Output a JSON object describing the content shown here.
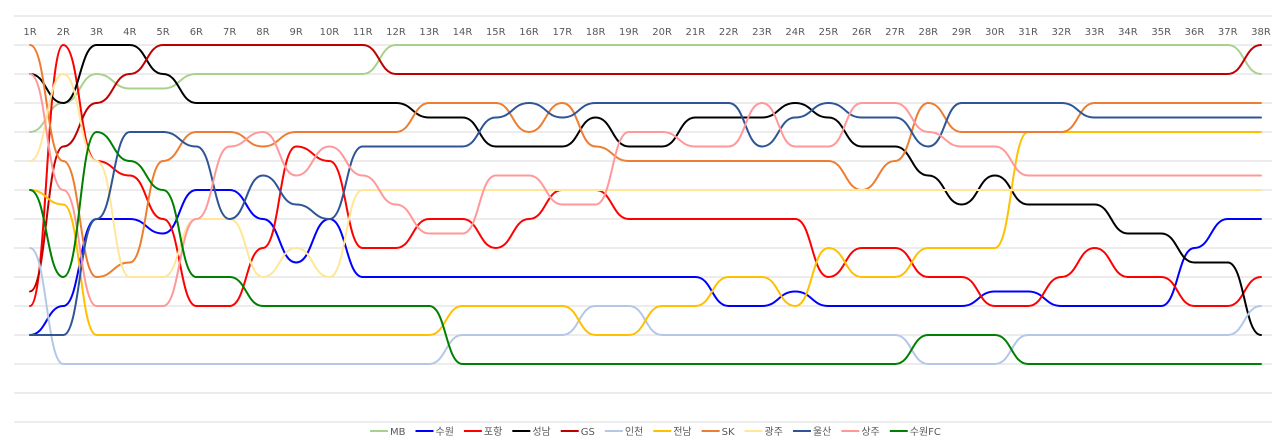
{
  "chart_data": {
    "type": "line",
    "title": "",
    "xlabel": "",
    "ylabel": "",
    "x": [
      "1R",
      "2R",
      "3R",
      "4R",
      "5R",
      "6R",
      "7R",
      "8R",
      "9R",
      "10R",
      "11R",
      "12R",
      "13R",
      "14R",
      "15R",
      "16R",
      "17R",
      "18R",
      "19R",
      "20R",
      "21R",
      "22R",
      "23R",
      "24R",
      "25R",
      "26R",
      "27R",
      "28R",
      "29R",
      "30R",
      "31R",
      "32R",
      "33R",
      "34R",
      "35R",
      "36R",
      "37R",
      "38R"
    ],
    "ylim": [
      1,
      12
    ],
    "y_reversed": true,
    "grid": true,
    "legend_position": "bottom",
    "series": [
      {
        "name": "MB",
        "color": "#a9d18e",
        "values": [
          4,
          3,
          2,
          2.5,
          2.5,
          2,
          2,
          2,
          2,
          2,
          2,
          1,
          1,
          1,
          1,
          1,
          1,
          1,
          1,
          1,
          1,
          1,
          1,
          1,
          1,
          1,
          1,
          1,
          1,
          1,
          1,
          1,
          1,
          1,
          1,
          1,
          1,
          2
        ]
      },
      {
        "name": "수원",
        "color": "#0000ff",
        "values": [
          11,
          10,
          7,
          7,
          7.5,
          6,
          6,
          7,
          8.5,
          7,
          9,
          9,
          9,
          9,
          9,
          9,
          9,
          9,
          9,
          9,
          9,
          10,
          10,
          9.5,
          10,
          10,
          10,
          10,
          10,
          9.5,
          9.5,
          10,
          10,
          10,
          10,
          8,
          7,
          7
        ]
      },
      {
        "name": "포항",
        "color": "#ff0000",
        "values": [
          10,
          1,
          5,
          5.5,
          7,
          10,
          10,
          8,
          4.5,
          5,
          8,
          8,
          7,
          7,
          8,
          7,
          6,
          6,
          7,
          7,
          7,
          7,
          7,
          7,
          9,
          8,
          8,
          9,
          9,
          10,
          10,
          9,
          8,
          9,
          9,
          10,
          10,
          9
        ]
      },
      {
        "name": "성남",
        "color": "#000000",
        "values": [
          2,
          3,
          1,
          1,
          2,
          3,
          3,
          3,
          3,
          3,
          3,
          3,
          3.5,
          3.5,
          4.5,
          4.5,
          4.5,
          3.5,
          4.5,
          4.5,
          3.5,
          3.5,
          3.5,
          3,
          3.5,
          4.5,
          4.5,
          5.5,
          6.5,
          5.5,
          6.5,
          6.5,
          6.5,
          7.5,
          7.5,
          8.5,
          8.5,
          11
        ]
      },
      {
        "name": "GS",
        "color": "#c00000",
        "values": [
          9.5,
          4.5,
          3,
          2,
          1,
          1,
          1,
          1,
          1,
          1,
          1,
          2,
          2,
          2,
          2,
          2,
          2,
          2,
          2,
          2,
          2,
          2,
          2,
          2,
          2,
          2,
          2,
          2,
          2,
          2,
          2,
          2,
          2,
          2,
          2,
          2,
          2,
          1
        ]
      },
      {
        "name": "인천",
        "color": "#b4c7e7",
        "values": [
          8,
          12,
          12,
          12,
          12,
          12,
          12,
          12,
          12,
          12,
          12,
          12,
          12,
          11,
          11,
          11,
          11,
          10,
          10,
          11,
          11,
          11,
          11,
          11,
          11,
          11,
          11,
          12,
          12,
          12,
          11,
          11,
          11,
          11,
          11,
          11,
          11,
          10
        ]
      },
      {
        "name": "전남",
        "color": "#ffc000",
        "values": [
          6,
          6.5,
          11,
          11,
          11,
          11,
          11,
          11,
          11,
          11,
          11,
          11,
          11,
          10,
          10,
          10,
          10,
          11,
          11,
          10,
          10,
          9,
          9,
          10,
          8,
          9,
          9,
          8,
          8,
          8,
          4,
          4,
          4,
          4,
          4,
          4,
          4,
          4
        ]
      },
      {
        "name": "SK",
        "color": "#ed7d31",
        "values": [
          1,
          5,
          9,
          8.5,
          5,
          4,
          4,
          4.5,
          4,
          4,
          4,
          4,
          3,
          3,
          3,
          4,
          3,
          4.5,
          5,
          5,
          5,
          5,
          5,
          5,
          5,
          6,
          5,
          3,
          4,
          4,
          4,
          4,
          3,
          3,
          3,
          3,
          3,
          3
        ]
      },
      {
        "name": "광주",
        "color": "#ffe699",
        "values": [
          5,
          2,
          5,
          9,
          9,
          7,
          7,
          9,
          8,
          9,
          6,
          6,
          6,
          6,
          6,
          6,
          6,
          6,
          6,
          6,
          6,
          6,
          6,
          6,
          6,
          6,
          6,
          6,
          6,
          6,
          6,
          6,
          6,
          6,
          6,
          6,
          6,
          6
        ]
      },
      {
        "name": "울산",
        "color": "#2f5597",
        "values": [
          11,
          11,
          7,
          4,
          4,
          4.5,
          7,
          5.5,
          6.5,
          7,
          4.5,
          4.5,
          4.5,
          4.5,
          3.5,
          3,
          3.5,
          3,
          3,
          3,
          3,
          3,
          4.5,
          3.5,
          3,
          3.5,
          3.5,
          4.5,
          3,
          3,
          3,
          3,
          3.5,
          3.5,
          3.5,
          3.5,
          3.5,
          3.5
        ]
      },
      {
        "name": "상주",
        "color": "#ff9999",
        "values": [
          2,
          6,
          10,
          10,
          10,
          7,
          4.5,
          4,
          5.5,
          4.5,
          5.5,
          6.5,
          7.5,
          7.5,
          5.5,
          5.5,
          6.5,
          6.5,
          4,
          4,
          4.5,
          4.5,
          3,
          4.5,
          4.5,
          3,
          3,
          4,
          4.5,
          4.5,
          5.5,
          5.5,
          5.5,
          5.5,
          5.5,
          5.5,
          5.5,
          5.5
        ]
      },
      {
        "name": "수원FC",
        "color": "#008000",
        "values": [
          6,
          9,
          4,
          5,
          6,
          9,
          9,
          10,
          10,
          10,
          10,
          10,
          10,
          12,
          12,
          12,
          12,
          12,
          12,
          12,
          12,
          12,
          12,
          12,
          12,
          12,
          12,
          11,
          11,
          11,
          12,
          12,
          12,
          12,
          12,
          12,
          12,
          12
        ]
      }
    ]
  }
}
